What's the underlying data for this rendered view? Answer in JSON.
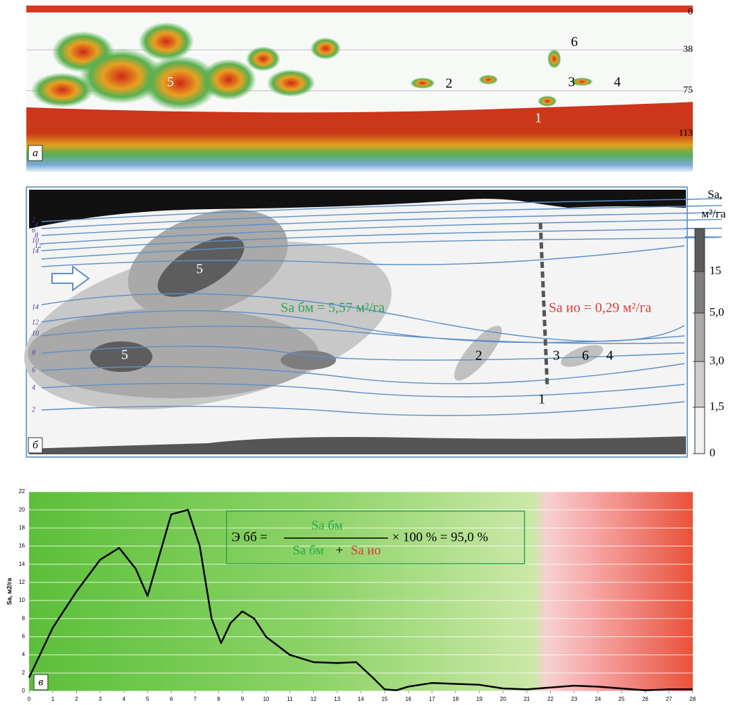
{
  "echogram": {
    "panel_label": "а",
    "depth_labels": [
      0,
      38,
      75,
      113
    ],
    "zone_labels": [
      5,
      2,
      6,
      3,
      4,
      1
    ]
  },
  "map": {
    "panel_label": "б",
    "legend_title": "Sa,",
    "legend_unit": "м²/га",
    "legend_ticks": [
      15,
      {
        "value": 5,
        "label": "5,0"
      },
      {
        "value": 3,
        "label": "3,0"
      },
      {
        "value": 1.5,
        "label": "1,5"
      },
      0
    ],
    "legend_colors": [
      "#5a5a5a",
      "#7d7d7d",
      "#a9a9a9",
      "#cdcdcd",
      "#f2f2f2"
    ],
    "sa_main": "Sa бм = 5,57 м²/га",
    "sa_other": "Sa ио = 0,29 м²/га",
    "zone_labels": [
      5,
      5,
      2,
      3,
      6,
      4,
      1
    ],
    "isobaths_top": [
      2,
      4,
      6,
      8,
      10,
      12,
      14
    ],
    "isobaths_bottom": [
      14,
      12,
      10,
      8,
      6,
      4,
      2
    ]
  },
  "chart_data": {
    "type": "line",
    "panel_label": "в",
    "ylabel": "Sa, м2/га",
    "color": "#000000",
    "x": [
      0,
      1,
      2,
      3,
      3.8,
      4.5,
      5,
      5.5,
      6,
      6.7,
      7.2,
      7.7,
      8.1,
      8.5,
      9,
      9.5,
      10,
      11,
      12,
      13,
      13.8,
      14.5,
      15,
      15.5,
      16,
      17,
      18,
      19,
      20,
      21,
      22,
      23,
      24,
      25,
      26,
      27,
      28
    ],
    "values": [
      1.5,
      7,
      11,
      14.5,
      15.8,
      13.5,
      10.5,
      15,
      19.5,
      20,
      16,
      8,
      5.3,
      7.5,
      8.8,
      8,
      6,
      4,
      3.2,
      3.1,
      3.2,
      1.5,
      0.2,
      0.1,
      0.5,
      0.9,
      0.8,
      0.7,
      0.3,
      0.2,
      0.4,
      0.6,
      0.5,
      0.3,
      0.1,
      0.2,
      0.2
    ],
    "xlim": [
      0,
      28.3
    ],
    "xticks": [
      0,
      1,
      2,
      3,
      4,
      5,
      6,
      7,
      8,
      9,
      10,
      11,
      12,
      13,
      14,
      15,
      16,
      17,
      18,
      19,
      20,
      21,
      22,
      23,
      24,
      25,
      26,
      27,
      28
    ],
    "ylim": [
      0,
      22
    ],
    "yticks": [
      0,
      2,
      4,
      6,
      8,
      10,
      12,
      14,
      16,
      18,
      20,
      22
    ],
    "grid": true,
    "formula": {
      "lhs": "Э бб =",
      "numerator": "Sa бм",
      "denominator_a": "Sa бм",
      "plus": "+",
      "denominator_b": "Sa ио",
      "rhs": "× 100 % = 95,0 %"
    }
  }
}
